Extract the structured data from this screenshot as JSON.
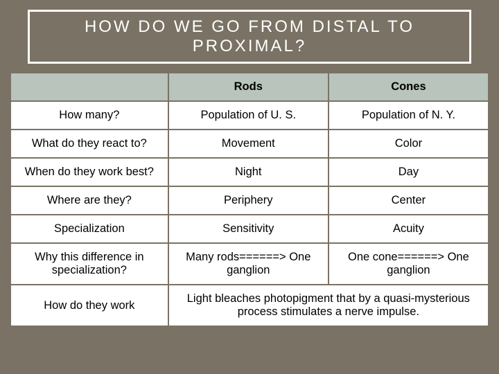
{
  "title": "HOW DO WE GO FROM DISTAL TO PROXIMAL?",
  "colors": {
    "background": "#7a7264",
    "header_bg": "#b8c4bc",
    "table_bg": "#ffffff",
    "title_text": "#ffffff",
    "cell_text": "#000000",
    "border": "#7a7264"
  },
  "table": {
    "columns": [
      "",
      "Rods",
      "Cones"
    ],
    "rows": [
      {
        "label": "How many?",
        "rods": "Population of U. S.",
        "cones": "Population of N. Y."
      },
      {
        "label": "What do they react to?",
        "rods": "Movement",
        "cones": "Color"
      },
      {
        "label": "When do they work best?",
        "rods": "Night",
        "cones": "Day"
      },
      {
        "label": "Where are they?",
        "rods": "Periphery",
        "cones": "Center"
      },
      {
        "label": "Specialization",
        "rods": "Sensitivity",
        "cones": "Acuity"
      },
      {
        "label": "Why this difference in specialization?",
        "rods": "Many rods======> One ganglion",
        "cones": "One cone======> One ganglion"
      }
    ],
    "last_row": {
      "label": "How do they work",
      "merged": "Light bleaches photopigment that by a quasi-mysterious process stimulates a nerve impulse."
    }
  }
}
